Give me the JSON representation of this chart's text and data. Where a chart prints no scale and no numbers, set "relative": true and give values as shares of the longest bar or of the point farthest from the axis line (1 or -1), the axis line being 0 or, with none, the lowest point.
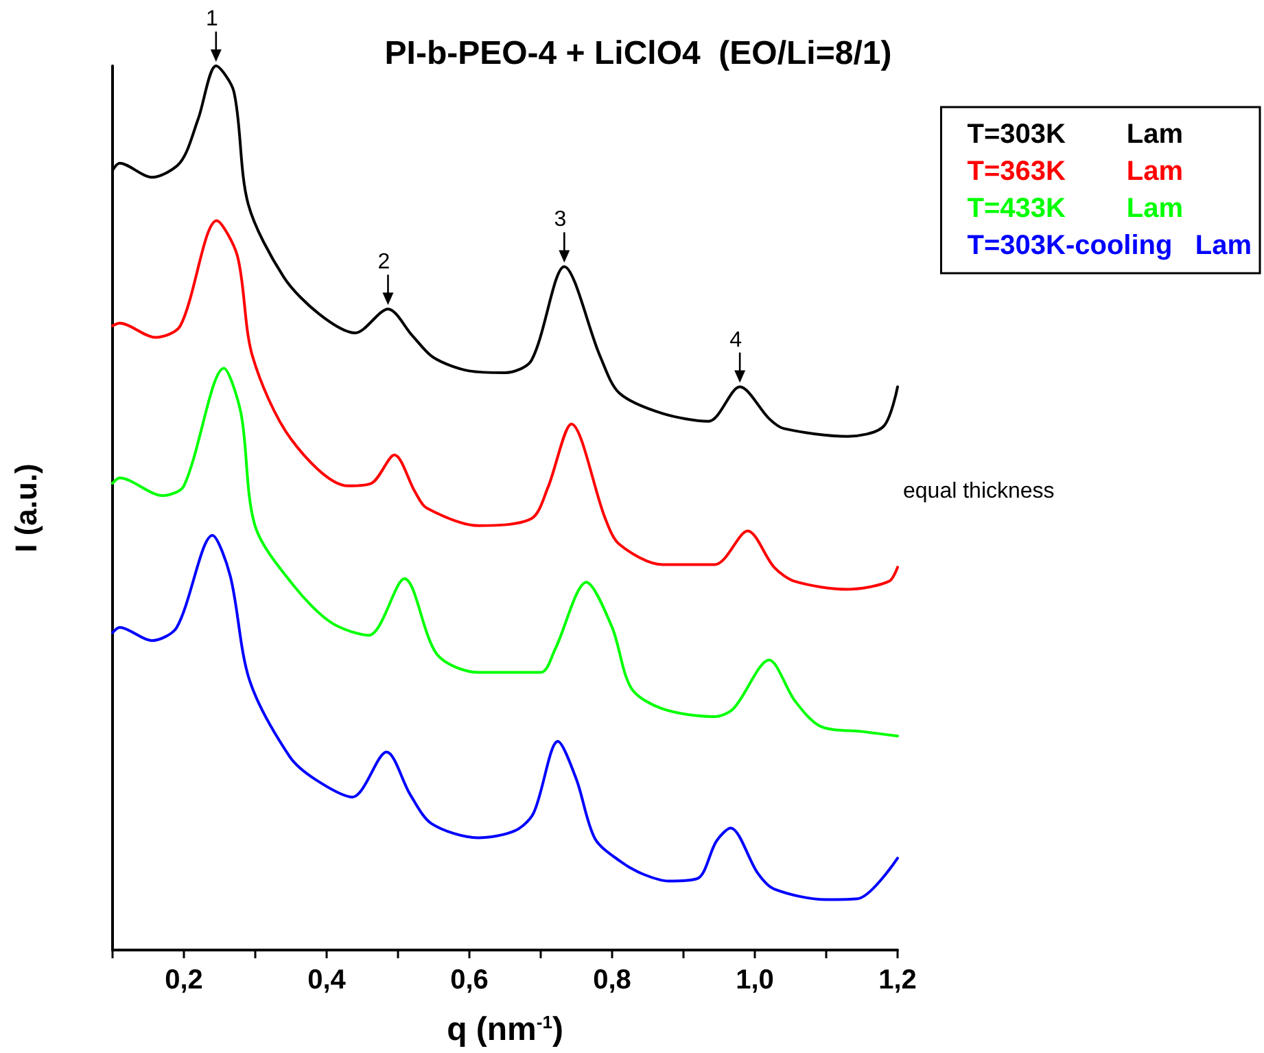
{
  "chart_data": {
    "type": "line",
    "title": "PI-b-PEO-4 + LiClO4  (EO/Li=8/1)",
    "xlabel": "q (nm$^{-1}$)",
    "ylabel": "I (a.u.)",
    "relative": true,
    "xlim": [
      0.1,
      1.2
    ],
    "xticks": [
      {
        "value": 0.1,
        "label": null
      },
      {
        "value": 0.2,
        "label": "0,2"
      },
      {
        "value": 0.3,
        "label": null
      },
      {
        "value": 0.4,
        "label": "0,4"
      },
      {
        "value": 0.5,
        "label": null
      },
      {
        "value": 0.6,
        "label": "0,6"
      },
      {
        "value": 0.7,
        "label": null
      },
      {
        "value": 0.8,
        "label": "0,8"
      },
      {
        "value": 0.9,
        "label": null
      },
      {
        "value": 1.0,
        "label": "1,0"
      },
      {
        "value": 1.1,
        "label": null
      },
      {
        "value": 1.2,
        "label": "1,2"
      }
    ],
    "tick_labels": "x",
    "grid": false,
    "legend": "top right",
    "marker": "none",
    "line_style": "solid",
    "series": [
      {
        "name": "T=303K        Lam",
        "color": "#000000",
        "x": [
          0.1,
          0.11,
          0.155,
          0.195,
          0.22,
          0.245,
          0.27,
          0.29,
          0.34,
          0.39,
          0.44,
          0.486,
          0.52,
          0.55,
          0.6,
          0.65,
          0.687,
          0.733,
          0.783,
          0.81,
          0.87,
          0.935,
          0.979,
          1.02,
          1.04,
          1.13,
          1.18,
          1.2
        ],
        "values": [
          0.882,
          0.89,
          0.874,
          0.891,
          0.94,
          1.0,
          0.971,
          0.844,
          0.761,
          0.719,
          0.698,
          0.725,
          0.695,
          0.67,
          0.655,
          0.653,
          0.667,
          0.773,
          0.672,
          0.63,
          0.607,
          0.598,
          0.637,
          0.601,
          0.59,
          0.581,
          0.592,
          0.637
        ]
      },
      {
        "name": "T=363K        Lam",
        "color": "#ff0000",
        "x": [
          0.1,
          0.11,
          0.16,
          0.195,
          0.246,
          0.275,
          0.296,
          0.35,
          0.43,
          0.463,
          0.495,
          0.524,
          0.54,
          0.613,
          0.687,
          0.71,
          0.743,
          0.79,
          0.81,
          0.87,
          0.944,
          0.99,
          1.027,
          1.056,
          1.13,
          1.188,
          1.2
        ],
        "values": [
          0.706,
          0.709,
          0.693,
          0.706,
          0.825,
          0.785,
          0.672,
          0.578,
          0.525,
          0.528,
          0.56,
          0.518,
          0.5,
          0.48,
          0.488,
          0.523,
          0.595,
          0.489,
          0.459,
          0.436,
          0.436,
          0.474,
          0.433,
          0.417,
          0.408,
          0.417,
          0.433
        ]
      },
      {
        "name": "T=433K        Lam",
        "color": "#00ff00",
        "x": [
          0.1,
          0.11,
          0.17,
          0.2,
          0.256,
          0.28,
          0.3,
          0.355,
          0.407,
          0.459,
          0.509,
          0.555,
          0.613,
          0.7,
          0.72,
          0.764,
          0.8,
          0.827,
          0.87,
          0.943,
          0.97,
          1.02,
          1.056,
          1.092,
          1.152,
          1.2
        ],
        "values": [
          0.528,
          0.534,
          0.514,
          0.525,
          0.658,
          0.607,
          0.479,
          0.411,
          0.37,
          0.356,
          0.42,
          0.334,
          0.314,
          0.314,
          0.34,
          0.416,
          0.365,
          0.296,
          0.273,
          0.264,
          0.273,
          0.328,
          0.282,
          0.253,
          0.247,
          0.242
        ]
      },
      {
        "name": "T=303K-cooling   Lam",
        "color": "#0000ff",
        "x": [
          0.1,
          0.11,
          0.155,
          0.19,
          0.24,
          0.265,
          0.292,
          0.348,
          0.384,
          0.436,
          0.484,
          0.517,
          0.547,
          0.612,
          0.664,
          0.69,
          0.724,
          0.75,
          0.776,
          0.812,
          0.843,
          0.879,
          0.92,
          0.946,
          0.966,
          1.004,
          1.027,
          1.1,
          1.144,
          1.2
        ],
        "values": [
          0.359,
          0.365,
          0.35,
          0.365,
          0.469,
          0.423,
          0.305,
          0.219,
          0.193,
          0.173,
          0.224,
          0.176,
          0.143,
          0.127,
          0.135,
          0.155,
          0.236,
          0.193,
          0.126,
          0.1,
          0.086,
          0.078,
          0.081,
          0.123,
          0.138,
          0.087,
          0.069,
          0.057,
          0.058,
          0.104
        ]
      }
    ],
    "annotations": [
      {
        "text": "1",
        "x": 0.245,
        "y": 1.0
      },
      {
        "text": "2",
        "x": 0.486,
        "y": 0.725
      },
      {
        "text": "3",
        "x": 0.733,
        "y": 0.773
      },
      {
        "text": "4",
        "x": 0.979,
        "y": 0.637
      },
      "equal thickness"
    ]
  }
}
